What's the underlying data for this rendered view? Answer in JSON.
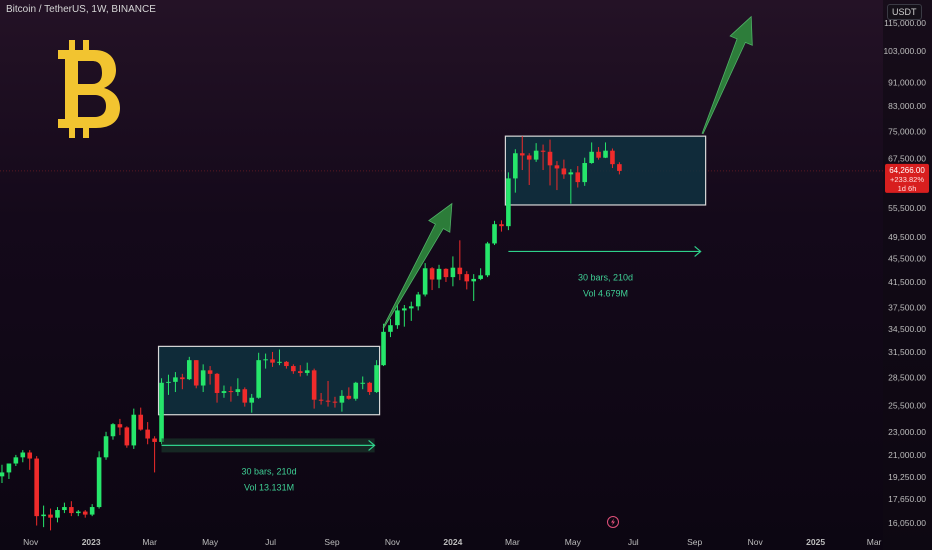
{
  "header": {
    "symbol": "Bitcoin / TetherUS, 1W, BINANCE",
    "currency": "USDT"
  },
  "price_badge": {
    "price": "64,266.00",
    "change": "+233.82%",
    "countdown": "1d 6h"
  },
  "icons": {
    "logo": "bitcoin-logo",
    "flash": "lightning-icon"
  },
  "colors": {
    "up": "#26e66b",
    "down": "#ef2b2b",
    "range_box": "#0f3140",
    "arrow": "#2f8a3d",
    "logo": "#f2c430",
    "badge": "#d81f1f"
  },
  "chart_data": {
    "type": "candlestick",
    "scale": "log",
    "ylim": [
      15500,
      126000
    ],
    "yticks": [
      {
        "v": 115000,
        "label": "115,000.00"
      },
      {
        "v": 103000,
        "label": "103,000.00"
      },
      {
        "v": 91000,
        "label": "91,000.00"
      },
      {
        "v": 83000,
        "label": "83,000.00"
      },
      {
        "v": 75000,
        "label": "75,000.00"
      },
      {
        "v": 67500,
        "label": "67,500.00"
      },
      {
        "v": 55500,
        "label": "55,500.00"
      },
      {
        "v": 49500,
        "label": "49,500.00"
      },
      {
        "v": 45500,
        "label": "45,500.00"
      },
      {
        "v": 41500,
        "label": "41,500.00"
      },
      {
        "v": 37500,
        "label": "37,500.00"
      },
      {
        "v": 34500,
        "label": "34,500.00"
      },
      {
        "v": 31500,
        "label": "31,500.00"
      },
      {
        "v": 28500,
        "label": "28,500.00"
      },
      {
        "v": 25500,
        "label": "25,500.00"
      },
      {
        "v": 23000,
        "label": "23,000.00"
      },
      {
        "v": 21000,
        "label": "21,000.00"
      },
      {
        "v": 19250,
        "label": "19,250.00"
      },
      {
        "v": 17650,
        "label": "17,650.00"
      },
      {
        "v": 16050,
        "label": "16,050.00"
      }
    ],
    "xticks": [
      {
        "date": "2022-11-01",
        "label": "Nov",
        "bold": false
      },
      {
        "date": "2023-01-01",
        "label": "2023",
        "bold": true
      },
      {
        "date": "2023-03-01",
        "label": "Mar",
        "bold": false
      },
      {
        "date": "2023-05-01",
        "label": "May",
        "bold": false
      },
      {
        "date": "2023-07-01",
        "label": "Jul",
        "bold": false
      },
      {
        "date": "2023-09-01",
        "label": "Sep",
        "bold": false
      },
      {
        "date": "2023-11-01",
        "label": "Nov",
        "bold": false
      },
      {
        "date": "2024-01-01",
        "label": "2024",
        "bold": true
      },
      {
        "date": "2024-03-01",
        "label": "Mar",
        "bold": false
      },
      {
        "date": "2024-05-01",
        "label": "May",
        "bold": false
      },
      {
        "date": "2024-07-01",
        "label": "Jul",
        "bold": false
      },
      {
        "date": "2024-09-01",
        "label": "Sep",
        "bold": false
      },
      {
        "date": "2024-11-01",
        "label": "Nov",
        "bold": false
      },
      {
        "date": "2025-01-01",
        "label": "2025",
        "bold": true
      },
      {
        "date": "2025-03-01",
        "label": "Mar",
        "bold": false
      }
    ],
    "xlim": [
      "2022-10-01",
      "2025-03-10"
    ],
    "candles": [
      {
        "t": "2022-10-03",
        "o": 19300,
        "h": 20200,
        "l": 18800,
        "c": 19600
      },
      {
        "t": "2022-10-10",
        "o": 19600,
        "h": 20300,
        "l": 19100,
        "c": 20300
      },
      {
        "t": "2022-10-17",
        "o": 20300,
        "h": 21000,
        "l": 20100,
        "c": 20800
      },
      {
        "t": "2022-10-24",
        "o": 20800,
        "h": 21400,
        "l": 20400,
        "c": 21200
      },
      {
        "t": "2022-10-31",
        "o": 21200,
        "h": 21400,
        "l": 19800,
        "c": 20700
      },
      {
        "t": "2022-11-07",
        "o": 20700,
        "h": 20900,
        "l": 15900,
        "c": 16500
      },
      {
        "t": "2022-11-14",
        "o": 16500,
        "h": 17200,
        "l": 15800,
        "c": 16600
      },
      {
        "t": "2022-11-21",
        "o": 16600,
        "h": 17000,
        "l": 15600,
        "c": 16400
      },
      {
        "t": "2022-11-28",
        "o": 16400,
        "h": 17100,
        "l": 16100,
        "c": 16900
      },
      {
        "t": "2022-12-05",
        "o": 16900,
        "h": 17400,
        "l": 16700,
        "c": 17100
      },
      {
        "t": "2022-12-12",
        "o": 17100,
        "h": 17500,
        "l": 16500,
        "c": 16700
      },
      {
        "t": "2022-12-19",
        "o": 16700,
        "h": 16900,
        "l": 16500,
        "c": 16800
      },
      {
        "t": "2022-12-26",
        "o": 16800,
        "h": 16900,
        "l": 16400,
        "c": 16600
      },
      {
        "t": "2023-01-02",
        "o": 16600,
        "h": 17300,
        "l": 16500,
        "c": 17100
      },
      {
        "t": "2023-01-09",
        "o": 17100,
        "h": 21300,
        "l": 17000,
        "c": 20800
      },
      {
        "t": "2023-01-16",
        "o": 20800,
        "h": 23000,
        "l": 20600,
        "c": 22600
      },
      {
        "t": "2023-01-23",
        "o": 22600,
        "h": 23800,
        "l": 22300,
        "c": 23700
      },
      {
        "t": "2023-01-30",
        "o": 23700,
        "h": 24200,
        "l": 22700,
        "c": 23400
      },
      {
        "t": "2023-02-06",
        "o": 23400,
        "h": 23500,
        "l": 21600,
        "c": 21800
      },
      {
        "t": "2023-02-13",
        "o": 21800,
        "h": 25200,
        "l": 21500,
        "c": 24600
      },
      {
        "t": "2023-02-20",
        "o": 24600,
        "h": 25300,
        "l": 23100,
        "c": 23200
      },
      {
        "t": "2023-02-27",
        "o": 23200,
        "h": 23900,
        "l": 21900,
        "c": 22400
      },
      {
        "t": "2023-03-06",
        "o": 22400,
        "h": 22600,
        "l": 19600,
        "c": 22100
      },
      {
        "t": "2023-03-13",
        "o": 22100,
        "h": 28400,
        "l": 21900,
        "c": 27900
      },
      {
        "t": "2023-03-20",
        "o": 27900,
        "h": 28800,
        "l": 26600,
        "c": 28000
      },
      {
        "t": "2023-03-27",
        "o": 28000,
        "h": 29100,
        "l": 26900,
        "c": 28500
      },
      {
        "t": "2023-04-03",
        "o": 28500,
        "h": 28900,
        "l": 27200,
        "c": 28300
      },
      {
        "t": "2023-04-10",
        "o": 28300,
        "h": 30900,
        "l": 28200,
        "c": 30500
      },
      {
        "t": "2023-04-17",
        "o": 30500,
        "h": 30500,
        "l": 27300,
        "c": 27600
      },
      {
        "t": "2023-04-24",
        "o": 27600,
        "h": 30000,
        "l": 26900,
        "c": 29300
      },
      {
        "t": "2023-05-01",
        "o": 29300,
        "h": 29800,
        "l": 27700,
        "c": 28900
      },
      {
        "t": "2023-05-08",
        "o": 28900,
        "h": 29000,
        "l": 25800,
        "c": 26800
      },
      {
        "t": "2023-05-15",
        "o": 26800,
        "h": 27600,
        "l": 26300,
        "c": 27000
      },
      {
        "t": "2023-05-22",
        "o": 27000,
        "h": 27500,
        "l": 25900,
        "c": 26900
      },
      {
        "t": "2023-05-29",
        "o": 26900,
        "h": 28400,
        "l": 26500,
        "c": 27200
      },
      {
        "t": "2023-06-05",
        "o": 27200,
        "h": 27400,
        "l": 25400,
        "c": 25800
      },
      {
        "t": "2023-06-12",
        "o": 25800,
        "h": 26700,
        "l": 24800,
        "c": 26300
      },
      {
        "t": "2023-06-19",
        "o": 26300,
        "h": 31400,
        "l": 26200,
        "c": 30500
      },
      {
        "t": "2023-06-26",
        "o": 30500,
        "h": 31300,
        "l": 29500,
        "c": 30600
      },
      {
        "t": "2023-07-03",
        "o": 30600,
        "h": 31500,
        "l": 29700,
        "c": 30200
      },
      {
        "t": "2023-07-10",
        "o": 30200,
        "h": 31800,
        "l": 29900,
        "c": 30300
      },
      {
        "t": "2023-07-17",
        "o": 30300,
        "h": 30400,
        "l": 29500,
        "c": 29800
      },
      {
        "t": "2023-07-24",
        "o": 29800,
        "h": 30000,
        "l": 28900,
        "c": 29200
      },
      {
        "t": "2023-07-31",
        "o": 29200,
        "h": 29900,
        "l": 28600,
        "c": 29000
      },
      {
        "t": "2023-08-07",
        "o": 29000,
        "h": 30200,
        "l": 28700,
        "c": 29300
      },
      {
        "t": "2023-08-14",
        "o": 29300,
        "h": 29500,
        "l": 25200,
        "c": 26100
      },
      {
        "t": "2023-08-21",
        "o": 26100,
        "h": 26800,
        "l": 25600,
        "c": 26000
      },
      {
        "t": "2023-08-28",
        "o": 26000,
        "h": 28100,
        "l": 25400,
        "c": 25900
      },
      {
        "t": "2023-09-04",
        "o": 25900,
        "h": 26400,
        "l": 25300,
        "c": 25800
      },
      {
        "t": "2023-09-11",
        "o": 25800,
        "h": 27100,
        "l": 24900,
        "c": 26500
      },
      {
        "t": "2023-09-18",
        "o": 26500,
        "h": 27400,
        "l": 26100,
        "c": 26200
      },
      {
        "t": "2023-09-25",
        "o": 26200,
        "h": 28000,
        "l": 26000,
        "c": 27900
      },
      {
        "t": "2023-10-02",
        "o": 27900,
        "h": 28600,
        "l": 27200,
        "c": 27900
      },
      {
        "t": "2023-10-09",
        "o": 27900,
        "h": 28000,
        "l": 26600,
        "c": 26900
      },
      {
        "t": "2023-10-16",
        "o": 26900,
        "h": 30500,
        "l": 26800,
        "c": 29900
      },
      {
        "t": "2023-10-23",
        "o": 29900,
        "h": 35200,
        "l": 29800,
        "c": 34100
      },
      {
        "t": "2023-10-30",
        "o": 34100,
        "h": 35900,
        "l": 33400,
        "c": 35000
      },
      {
        "t": "2023-11-06",
        "o": 35000,
        "h": 37900,
        "l": 34500,
        "c": 37100
      },
      {
        "t": "2023-11-13",
        "o": 37100,
        "h": 37900,
        "l": 34800,
        "c": 37400
      },
      {
        "t": "2023-11-20",
        "o": 37400,
        "h": 38400,
        "l": 35600,
        "c": 37700
      },
      {
        "t": "2023-11-27",
        "o": 37700,
        "h": 39900,
        "l": 37100,
        "c": 39500
      },
      {
        "t": "2023-12-04",
        "o": 39500,
        "h": 44700,
        "l": 39200,
        "c": 43800
      },
      {
        "t": "2023-12-11",
        "o": 43800,
        "h": 44000,
        "l": 40200,
        "c": 41900
      },
      {
        "t": "2023-12-18",
        "o": 41900,
        "h": 44400,
        "l": 40500,
        "c": 43700
      },
      {
        "t": "2023-12-25",
        "o": 43700,
        "h": 43800,
        "l": 41500,
        "c": 42300
      },
      {
        "t": "2024-01-01",
        "o": 42300,
        "h": 45900,
        "l": 40800,
        "c": 43900
      },
      {
        "t": "2024-01-08",
        "o": 43900,
        "h": 48900,
        "l": 41800,
        "c": 42800
      },
      {
        "t": "2024-01-15",
        "o": 42800,
        "h": 43300,
        "l": 40300,
        "c": 41600
      },
      {
        "t": "2024-01-22",
        "o": 41600,
        "h": 42800,
        "l": 38500,
        "c": 42000
      },
      {
        "t": "2024-01-29",
        "o": 42000,
        "h": 43800,
        "l": 41800,
        "c": 42600
      },
      {
        "t": "2024-02-05",
        "o": 42600,
        "h": 48600,
        "l": 42300,
        "c": 48300
      },
      {
        "t": "2024-02-12",
        "o": 48300,
        "h": 52800,
        "l": 48000,
        "c": 52100
      },
      {
        "t": "2024-02-19",
        "o": 52100,
        "h": 52900,
        "l": 50600,
        "c": 51700
      },
      {
        "t": "2024-02-26",
        "o": 51700,
        "h": 63900,
        "l": 50900,
        "c": 62400
      },
      {
        "t": "2024-03-04",
        "o": 62400,
        "h": 70000,
        "l": 59000,
        "c": 68900
      },
      {
        "t": "2024-03-11",
        "o": 68900,
        "h": 73700,
        "l": 64500,
        "c": 68300
      },
      {
        "t": "2024-03-18",
        "o": 68300,
        "h": 68900,
        "l": 60800,
        "c": 67200
      },
      {
        "t": "2024-03-25",
        "o": 67200,
        "h": 71700,
        "l": 66600,
        "c": 69600
      },
      {
        "t": "2024-04-01",
        "o": 69600,
        "h": 71300,
        "l": 64500,
        "c": 69300
      },
      {
        "t": "2024-04-08",
        "o": 69300,
        "h": 72700,
        "l": 60700,
        "c": 65700
      },
      {
        "t": "2024-04-15",
        "o": 65700,
        "h": 66800,
        "l": 59600,
        "c": 64900
      },
      {
        "t": "2024-04-22",
        "o": 64900,
        "h": 67200,
        "l": 62300,
        "c": 63400
      },
      {
        "t": "2024-04-29",
        "o": 63400,
        "h": 64700,
        "l": 56500,
        "c": 63900
      },
      {
        "t": "2024-05-06",
        "o": 63900,
        "h": 65500,
        "l": 60200,
        "c": 61500
      },
      {
        "t": "2024-05-13",
        "o": 61500,
        "h": 67700,
        "l": 60600,
        "c": 66300
      },
      {
        "t": "2024-05-20",
        "o": 66300,
        "h": 71900,
        "l": 66100,
        "c": 69300
      },
      {
        "t": "2024-05-27",
        "o": 69300,
        "h": 70600,
        "l": 67200,
        "c": 67700
      },
      {
        "t": "2024-06-03",
        "o": 67700,
        "h": 71900,
        "l": 67600,
        "c": 69600
      },
      {
        "t": "2024-06-10",
        "o": 69600,
        "h": 70200,
        "l": 65000,
        "c": 66000
      },
      {
        "t": "2024-06-17",
        "o": 66000,
        "h": 66500,
        "l": 63400,
        "c": 64266
      }
    ],
    "ranges": [
      {
        "start": "2023-03-13",
        "end": "2023-10-16",
        "low": 24600,
        "high": 32200,
        "measure": {
          "label": "30 bars, 210d",
          "vol": "Vol 13.131M",
          "y": 21800
        }
      },
      {
        "start": "2024-02-26",
        "end": "2024-09-09",
        "low": 56200,
        "high": 73700,
        "measure": {
          "label": "30 bars, 210d",
          "vol": "Vol 4.679M",
          "y": 46800
        }
      }
    ],
    "projection_arrows": [
      {
        "from": {
          "t": "2023-10-23",
          "v": 34700
        },
        "to": {
          "t": "2023-12-31",
          "v": 56500
        }
      },
      {
        "from": {
          "t": "2024-09-09",
          "v": 74500
        },
        "to": {
          "t": "2024-10-28",
          "v": 118000
        }
      }
    ],
    "current_price": 64266
  }
}
